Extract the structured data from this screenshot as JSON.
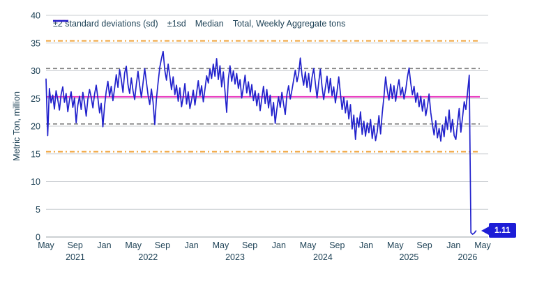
{
  "colors": {
    "background": "#FFFFFF",
    "series_blue": "#2121CC",
    "median_magenta": "#E835BE",
    "sd2_orange": "#F0A43C",
    "sd1_gray": "#7F7F7F",
    "gridline": "#C9CDD1",
    "axis_line": "#ADB3B9",
    "text": "#1E4256",
    "callout_bg": "#1D1DD6",
    "callout_text": "#FFFFFF"
  },
  "chart_data": {
    "type": "line",
    "ylabel": "Metric Ton, million",
    "ylim": [
      0,
      40
    ],
    "yticks": [
      0,
      5,
      10,
      15,
      20,
      25,
      30,
      35,
      40
    ],
    "grid": "horizontal",
    "legend_position": "top",
    "x_axis": {
      "start": "May 2021",
      "end": "May 2026",
      "unit": "weekly",
      "total_weeks": 261,
      "month_ticks": [
        "May",
        "Sep",
        "Jan",
        "May",
        "Sep",
        "Jan",
        "May",
        "Sep",
        "Jan",
        "May",
        "Sep",
        "Jan",
        "May",
        "Sep",
        "Jan",
        "May"
      ],
      "year_labels": [
        {
          "label": "2021",
          "week": 17.5
        },
        {
          "label": "2022",
          "week": 61
        },
        {
          "label": "2023",
          "week": 113
        },
        {
          "label": "2024",
          "week": 165.5
        },
        {
          "label": "2025",
          "week": 217
        },
        {
          "label": "2026",
          "week": 252
        }
      ]
    },
    "reference_lines": {
      "median": 25.3,
      "sd1_upper": 30.4,
      "sd1_lower": 20.4,
      "sd2_upper": 35.4,
      "sd2_lower": 15.4
    },
    "legend": [
      {
        "label": "±2 standard deviations (sd)",
        "color": "#F0A43C",
        "style": "dash-dot"
      },
      {
        "label": "±1sd",
        "color": "#7F7F7F",
        "style": "dashed"
      },
      {
        "label": "Median",
        "color": "#E835BE",
        "style": "solid"
      },
      {
        "label": "Total, Weekly Aggregate tons",
        "color": "#2121CC",
        "style": "solid"
      }
    ],
    "series": [
      {
        "name": "Total, Weekly Aggregate tons",
        "color": "#2121CC",
        "values": [
          28.5,
          18.3,
          26.8,
          24.2,
          25.6,
          23.1,
          26.4,
          24.8,
          22.9,
          25.7,
          27.1,
          24.3,
          25.9,
          22.6,
          24.7,
          26.2,
          23.4,
          25.1,
          20.6,
          23.8,
          25.4,
          23.0,
          26.1,
          24.2,
          21.8,
          24.9,
          26.6,
          25.2,
          23.3,
          25.8,
          27.4,
          25.0,
          22.4,
          24.1,
          19.9,
          23.6,
          26.3,
          28.1,
          25.4,
          27.2,
          24.6,
          26.8,
          29.3,
          27.0,
          30.2,
          28.4,
          26.1,
          29.6,
          30.8,
          27.5,
          25.9,
          28.7,
          26.4,
          24.8,
          27.6,
          29.9,
          27.3,
          25.2,
          27.8,
          30.4,
          28.0,
          25.6,
          23.9,
          26.7,
          24.3,
          20.3,
          24.9,
          27.9,
          30.6,
          32.2,
          33.5,
          30.1,
          28.3,
          31.2,
          29.0,
          26.6,
          28.9,
          25.7,
          27.4,
          24.5,
          26.9,
          23.5,
          25.3,
          27.7,
          24.0,
          26.2,
          23.2,
          24.7,
          26.5,
          23.8,
          26.0,
          28.2,
          25.5,
          27.3,
          24.4,
          26.7,
          29.1,
          27.8,
          30.3,
          28.6,
          31.2,
          29.0,
          32.2,
          28.4,
          30.9,
          27.1,
          29.8,
          26.3,
          22.5,
          28.5,
          30.9,
          28.1,
          30.0,
          27.6,
          29.5,
          26.8,
          28.4,
          25.1,
          27.0,
          29.2,
          26.0,
          28.0,
          25.4,
          27.5,
          24.6,
          26.4,
          23.7,
          25.9,
          22.8,
          25.0,
          27.2,
          24.1,
          26.6,
          23.3,
          25.6,
          21.9,
          24.3,
          20.5,
          23.1,
          25.3,
          23.4,
          26.1,
          24.0,
          22.1,
          25.7,
          27.3,
          24.9,
          26.5,
          28.3,
          30.1,
          28.0,
          29.4,
          32.3,
          29.2,
          27.4,
          29.8,
          27.0,
          29.5,
          26.2,
          28.8,
          30.4,
          27.7,
          25.1,
          27.9,
          30.3,
          27.2,
          24.8,
          26.9,
          29.0,
          26.0,
          28.6,
          25.5,
          27.1,
          24.2,
          26.3,
          28.9,
          25.9,
          23.0,
          25.2,
          22.4,
          24.6,
          21.3,
          23.9,
          19.5,
          22.0,
          17.6,
          21.5,
          19.8,
          22.6,
          18.5,
          20.9,
          18.2,
          20.6,
          18.8,
          21.2,
          17.8,
          20.1,
          17.4,
          19.0,
          21.9,
          18.6,
          22.4,
          25.3,
          28.9,
          26.4,
          24.7,
          27.6,
          25.0,
          27.3,
          24.5,
          26.8,
          28.4,
          25.6,
          27.0,
          24.9,
          26.5,
          28.8,
          30.5,
          27.8,
          25.7,
          27.2,
          24.3,
          26.0,
          23.5,
          25.4,
          22.7,
          24.8,
          21.9,
          23.6,
          25.8,
          22.5,
          20.3,
          18.4,
          21.0,
          17.9,
          19.6,
          17.3,
          20.2,
          18.1,
          21.7,
          19.4,
          22.9,
          18.9,
          21.2,
          18.3,
          17.6,
          20.5,
          23.2,
          18.9,
          21.6,
          24.4,
          23.0,
          26.1,
          29.2,
          0.8,
          0.5,
          0.7,
          1.11
        ]
      }
    ],
    "annotation": {
      "text": "1.11",
      "value": 1.11,
      "week": 257
    }
  }
}
